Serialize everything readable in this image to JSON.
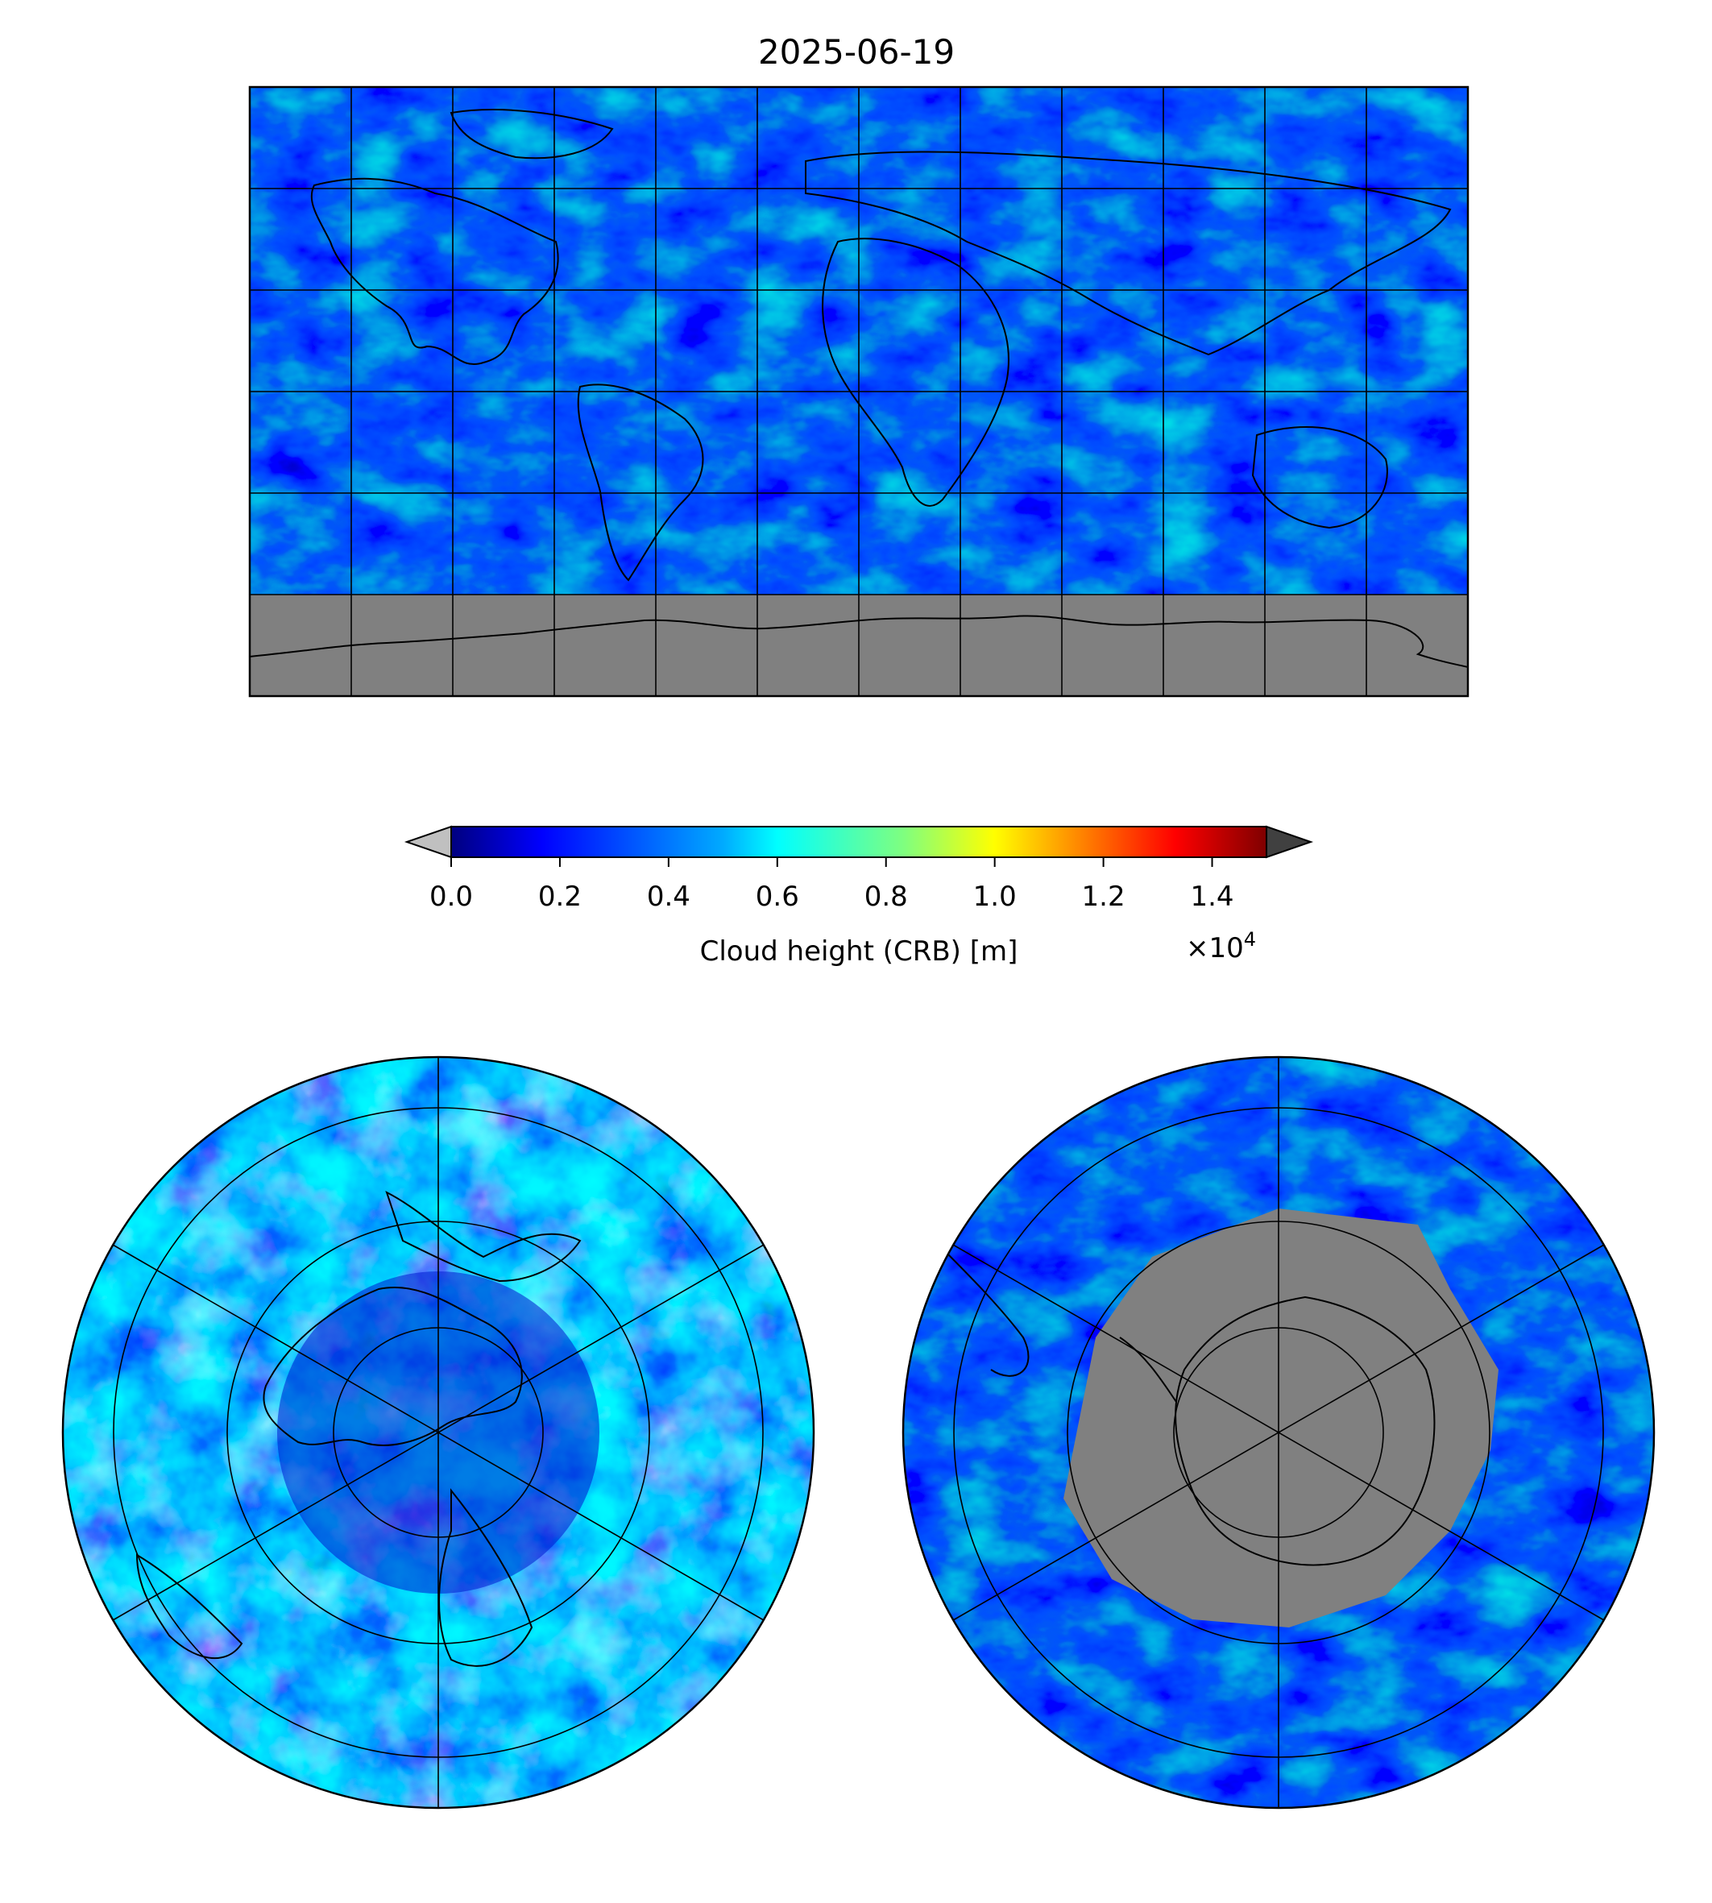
{
  "figure": {
    "title": "2025-06-19"
  },
  "colorbar": {
    "label": "Cloud height (CRB) [m]",
    "multiplier": "×10",
    "multiplier_exponent": "4",
    "ticks": [
      "0.0",
      "0.2",
      "0.4",
      "0.6",
      "0.8",
      "1.0",
      "1.2",
      "1.4"
    ],
    "tick_values": [
      0.0,
      0.2,
      0.4,
      0.6,
      0.8,
      1.0,
      1.2,
      1.4
    ],
    "range": [
      0.0,
      1.5
    ],
    "extend": "both",
    "under_color": "#c0c0c0",
    "over_color": "#404040",
    "colormap": "jet",
    "jet_stops": [
      "#00007f",
      "#0000ff",
      "#007fff",
      "#00ffff",
      "#7fff7f",
      "#ffff00",
      "#ff7f00",
      "#ff0000",
      "#7f0000"
    ]
  },
  "maps": {
    "global": {
      "projection": "plate-carree",
      "missing_color": "#808080",
      "gridlines": true
    },
    "north_polar": {
      "projection": "north-polar-stereographic",
      "missing_color": "#808080",
      "gridlines": true
    },
    "south_polar": {
      "projection": "south-polar-stereographic",
      "missing_color": "#808080",
      "gridlines": true
    }
  }
}
